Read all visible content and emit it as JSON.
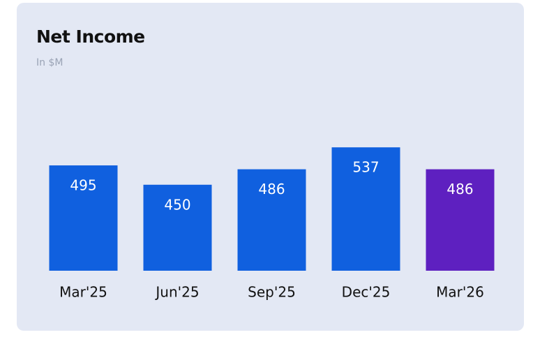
{
  "chart_data": {
    "type": "bar",
    "title": "Net Income",
    "subtitle": "In $M",
    "categories": [
      "Mar'25",
      "Jun'25",
      "Sep'25",
      "Dec'25",
      "Mar'26"
    ],
    "values": [
      495,
      450,
      486,
      537,
      486
    ],
    "colors": [
      "#1060df",
      "#1060df",
      "#1060df",
      "#1060df",
      "#5e20c0"
    ],
    "ylim": [
      250,
      560
    ]
  }
}
